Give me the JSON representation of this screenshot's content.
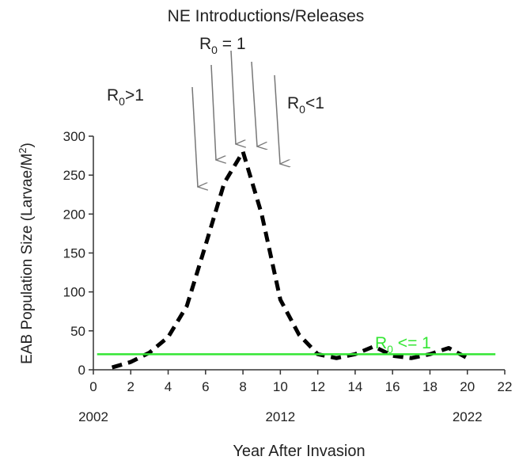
{
  "chart_data": {
    "type": "line",
    "title": "NE Introductions/Releases",
    "xlabel": "Year After Invasion",
    "ylabel": [
      "EAB Population Size (Larvae/M",
      "2",
      ")"
    ],
    "xlim": [
      0,
      22
    ],
    "xticks": [
      0,
      2,
      4,
      6,
      8,
      10,
      12,
      14,
      16,
      18,
      20,
      22
    ],
    "ylim": [
      0,
      300
    ],
    "yticks": [
      0,
      50,
      100,
      150,
      200,
      250,
      300
    ],
    "year_labels": [
      {
        "value": 0,
        "label": "2002"
      },
      {
        "value": 10,
        "label": "2012"
      },
      {
        "value": 20,
        "label": "2022"
      }
    ],
    "series": [
      {
        "color": "#000000",
        "dashed": true,
        "x": [
          1,
          2,
          3,
          4,
          5,
          6,
          7,
          8,
          9,
          10,
          11,
          12,
          13,
          14,
          15,
          16,
          17,
          18,
          19,
          20
        ],
        "values": [
          3,
          10,
          22,
          42,
          82,
          160,
          240,
          280,
          200,
          90,
          45,
          20,
          15,
          20,
          30,
          18,
          15,
          20,
          28,
          15
        ]
      },
      {
        "color": "#33e633",
        "dashed": false,
        "x": [
          0.2,
          21.5
        ],
        "values": [
          20,
          20
        ]
      }
    ],
    "annotations": [
      [
        "R",
        "0",
        ">1"
      ],
      [
        "R",
        "0",
        " = 1"
      ],
      [
        "R",
        "0",
        "<1"
      ],
      [
        "R",
        "0",
        " <= 1"
      ]
    ]
  }
}
